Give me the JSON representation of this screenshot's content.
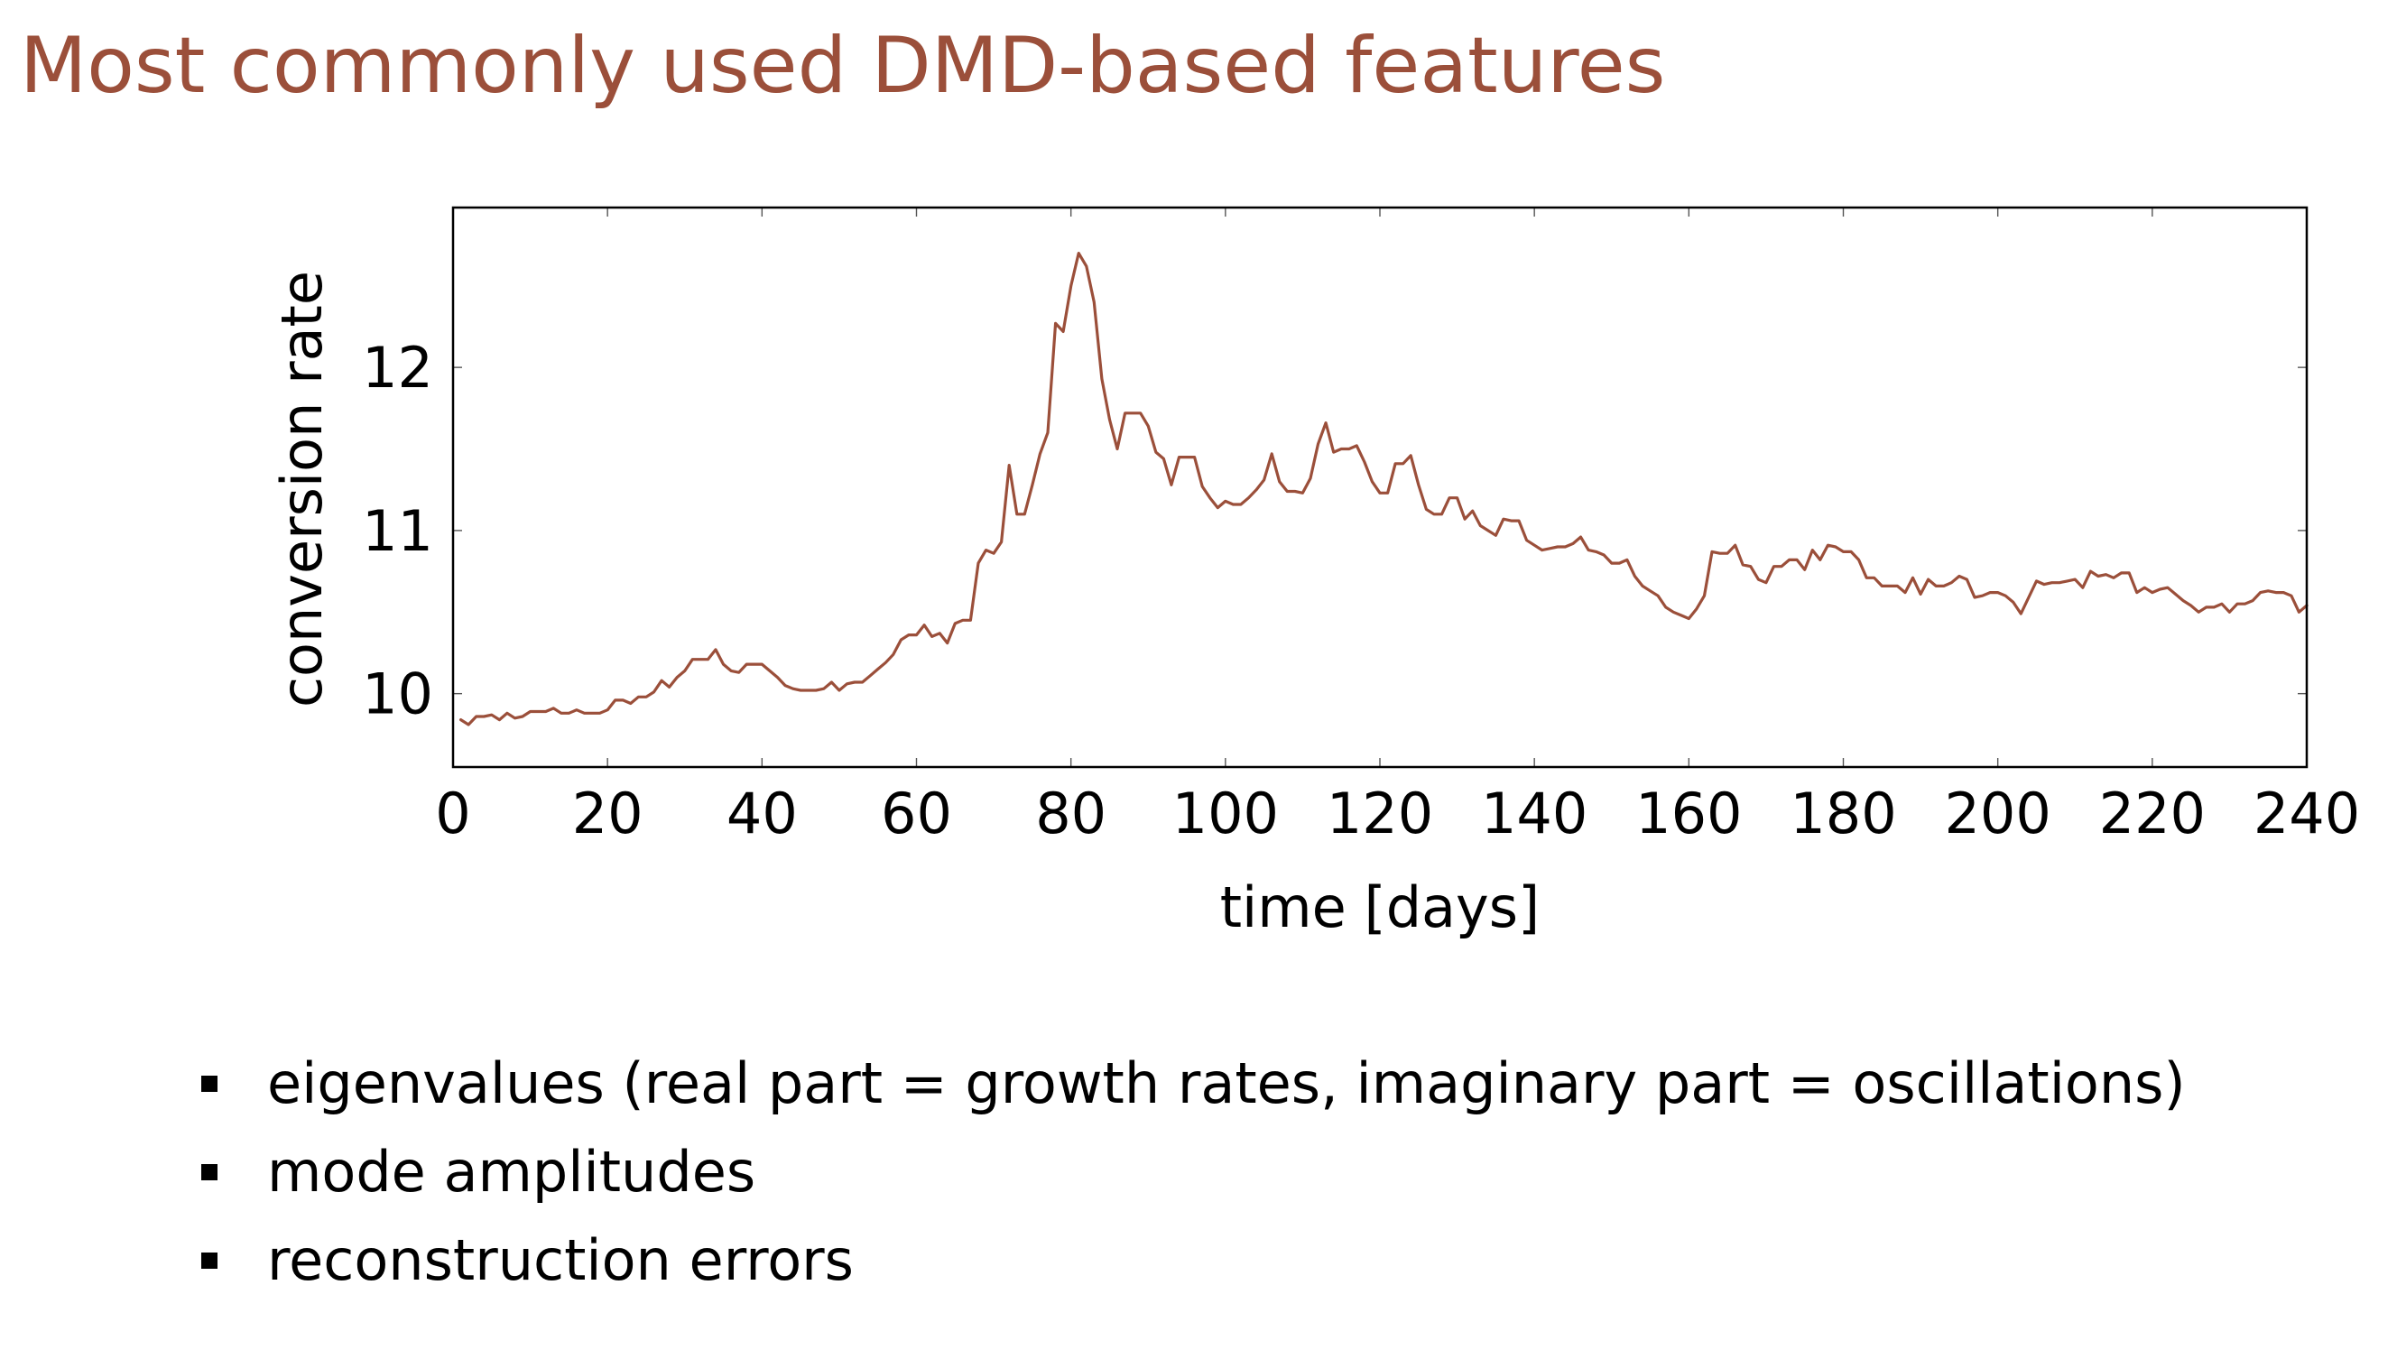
{
  "slide": {
    "title": "Most commonly used DMD-based features",
    "accent_color": "#9B4F3A"
  },
  "bullets": [
    {
      "text": "eigenvalues (real part = growth rates, imaginary part = oscillations)"
    },
    {
      "text": "mode amplitudes"
    },
    {
      "text": "reconstruction errors"
    }
  ],
  "chart_data": {
    "type": "line",
    "title": "",
    "xlabel": "time [days]",
    "ylabel": "conversion rate",
    "xlim": [
      0,
      240
    ],
    "ylim": [
      9.55,
      12.98
    ],
    "xticks": [
      0,
      20,
      40,
      60,
      80,
      100,
      120,
      140,
      160,
      180,
      200,
      220,
      240
    ],
    "yticks": [
      10,
      11,
      12
    ],
    "grid": false,
    "legend": "none",
    "series": [
      {
        "color": "#9B4F3A",
        "x": [
          1,
          2,
          3,
          4,
          5,
          6,
          7,
          8,
          9,
          10,
          11,
          12,
          13,
          14,
          15,
          16,
          17,
          18,
          19,
          20,
          21,
          22,
          23,
          24,
          25,
          26,
          27,
          28,
          29,
          30,
          31,
          32,
          33,
          34,
          35,
          36,
          37,
          38,
          39,
          40,
          41,
          42,
          43,
          44,
          45,
          46,
          47,
          48,
          49,
          50,
          51,
          52,
          53,
          54,
          55,
          56,
          57,
          58,
          59,
          60,
          61,
          62,
          63,
          64,
          65,
          66,
          67,
          68,
          69,
          70,
          71,
          72,
          73,
          74,
          75,
          76,
          77,
          78,
          79,
          80,
          81,
          82,
          83,
          84,
          85,
          86,
          87,
          88,
          89,
          90,
          91,
          92,
          93,
          94,
          95,
          96,
          97,
          98,
          99,
          100,
          101,
          102,
          103,
          104,
          105,
          106,
          107,
          108,
          109,
          110,
          111,
          112,
          113,
          114,
          115,
          116,
          117,
          118,
          119,
          120,
          121,
          122,
          123,
          124,
          125,
          126,
          127,
          128,
          129,
          130,
          131,
          132,
          133,
          134,
          135,
          136,
          137,
          138,
          139,
          140,
          141,
          142,
          143,
          144,
          145,
          146,
          147,
          148,
          149,
          150,
          151,
          152,
          153,
          154,
          155,
          156,
          157,
          158,
          159,
          160,
          161,
          162,
          163,
          164,
          165,
          166,
          167,
          168,
          169,
          170,
          171,
          172,
          173,
          174,
          175,
          176,
          177,
          178,
          179,
          180,
          181,
          182,
          183,
          184,
          185,
          186,
          187,
          188,
          189,
          190,
          191,
          192,
          193,
          194,
          195,
          196,
          197,
          198,
          199,
          200,
          201,
          202,
          203,
          204,
          205,
          206,
          207,
          208,
          209,
          210,
          211,
          212,
          213,
          214,
          215,
          216,
          217,
          218,
          219,
          220,
          221,
          222,
          223,
          224,
          225,
          226,
          227,
          228,
          229,
          230,
          231,
          232,
          233,
          234,
          235,
          236,
          237,
          238,
          239,
          240
        ],
        "y": [
          9.84,
          9.81,
          9.86,
          9.86,
          9.87,
          9.84,
          9.88,
          9.85,
          9.86,
          9.89,
          9.89,
          9.89,
          9.91,
          9.88,
          9.88,
          9.9,
          9.88,
          9.88,
          9.88,
          9.9,
          9.96,
          9.96,
          9.94,
          9.98,
          9.98,
          10.01,
          10.08,
          10.04,
          10.1,
          10.14,
          10.21,
          10.21,
          10.21,
          10.27,
          10.18,
          10.14,
          10.13,
          10.18,
          10.18,
          10.18,
          10.14,
          10.1,
          10.05,
          10.03,
          10.02,
          10.02,
          10.02,
          10.03,
          10.07,
          10.02,
          10.06,
          10.07,
          10.07,
          10.11,
          10.15,
          10.19,
          10.24,
          10.33,
          10.36,
          10.36,
          10.42,
          10.35,
          10.37,
          10.31,
          10.43,
          10.45,
          10.45,
          10.8,
          10.88,
          10.86,
          10.93,
          11.4,
          11.1,
          11.1,
          11.28,
          11.47,
          11.6,
          12.27,
          12.22,
          12.5,
          12.7,
          12.62,
          12.4,
          11.93,
          11.68,
          11.5,
          11.72,
          11.72,
          11.72,
          11.64,
          11.48,
          11.44,
          11.28,
          11.45,
          11.45,
          11.45,
          11.27,
          11.2,
          11.14,
          11.18,
          11.16,
          11.16,
          11.2,
          11.25,
          11.31,
          11.47,
          11.3,
          11.24,
          11.24,
          11.23,
          11.32,
          11.53,
          11.66,
          11.48,
          11.5,
          11.5,
          11.52,
          11.42,
          11.3,
          11.23,
          11.23,
          11.41,
          11.41,
          11.46,
          11.28,
          11.13,
          11.1,
          11.1,
          11.2,
          11.2,
          11.07,
          11.12,
          11.03,
          11.0,
          10.97,
          11.07,
          11.06,
          11.06,
          10.94,
          10.91,
          10.88,
          10.89,
          10.9,
          10.9,
          10.92,
          10.96,
          10.88,
          10.87,
          10.85,
          10.8,
          10.8,
          10.82,
          10.72,
          10.66,
          10.63,
          10.6,
          10.53,
          10.5,
          10.48,
          10.46,
          10.52,
          10.6,
          10.87,
          10.86,
          10.86,
          10.91,
          10.79,
          10.78,
          10.7,
          10.68,
          10.78,
          10.78,
          10.82,
          10.82,
          10.76,
          10.88,
          10.82,
          10.91,
          10.9,
          10.87,
          10.87,
          10.82,
          10.71,
          10.71,
          10.66,
          10.66,
          10.66,
          10.62,
          10.71,
          10.61,
          10.7,
          10.66,
          10.66,
          10.68,
          10.72,
          10.7,
          10.59,
          10.6,
          10.62,
          10.62,
          10.6,
          10.56,
          10.49,
          10.59,
          10.69,
          10.67,
          10.68,
          10.68,
          10.69,
          10.7,
          10.65,
          10.75,
          10.72,
          10.73,
          10.71,
          10.74,
          10.74,
          10.62,
          10.65,
          10.62,
          10.64,
          10.65,
          10.61,
          10.57,
          10.54,
          10.5,
          10.53,
          10.53,
          10.55,
          10.5,
          10.55,
          10.55,
          10.57,
          10.62,
          10.63,
          10.62,
          10.62,
          10.6,
          10.5,
          10.54
        ]
      }
    ]
  }
}
